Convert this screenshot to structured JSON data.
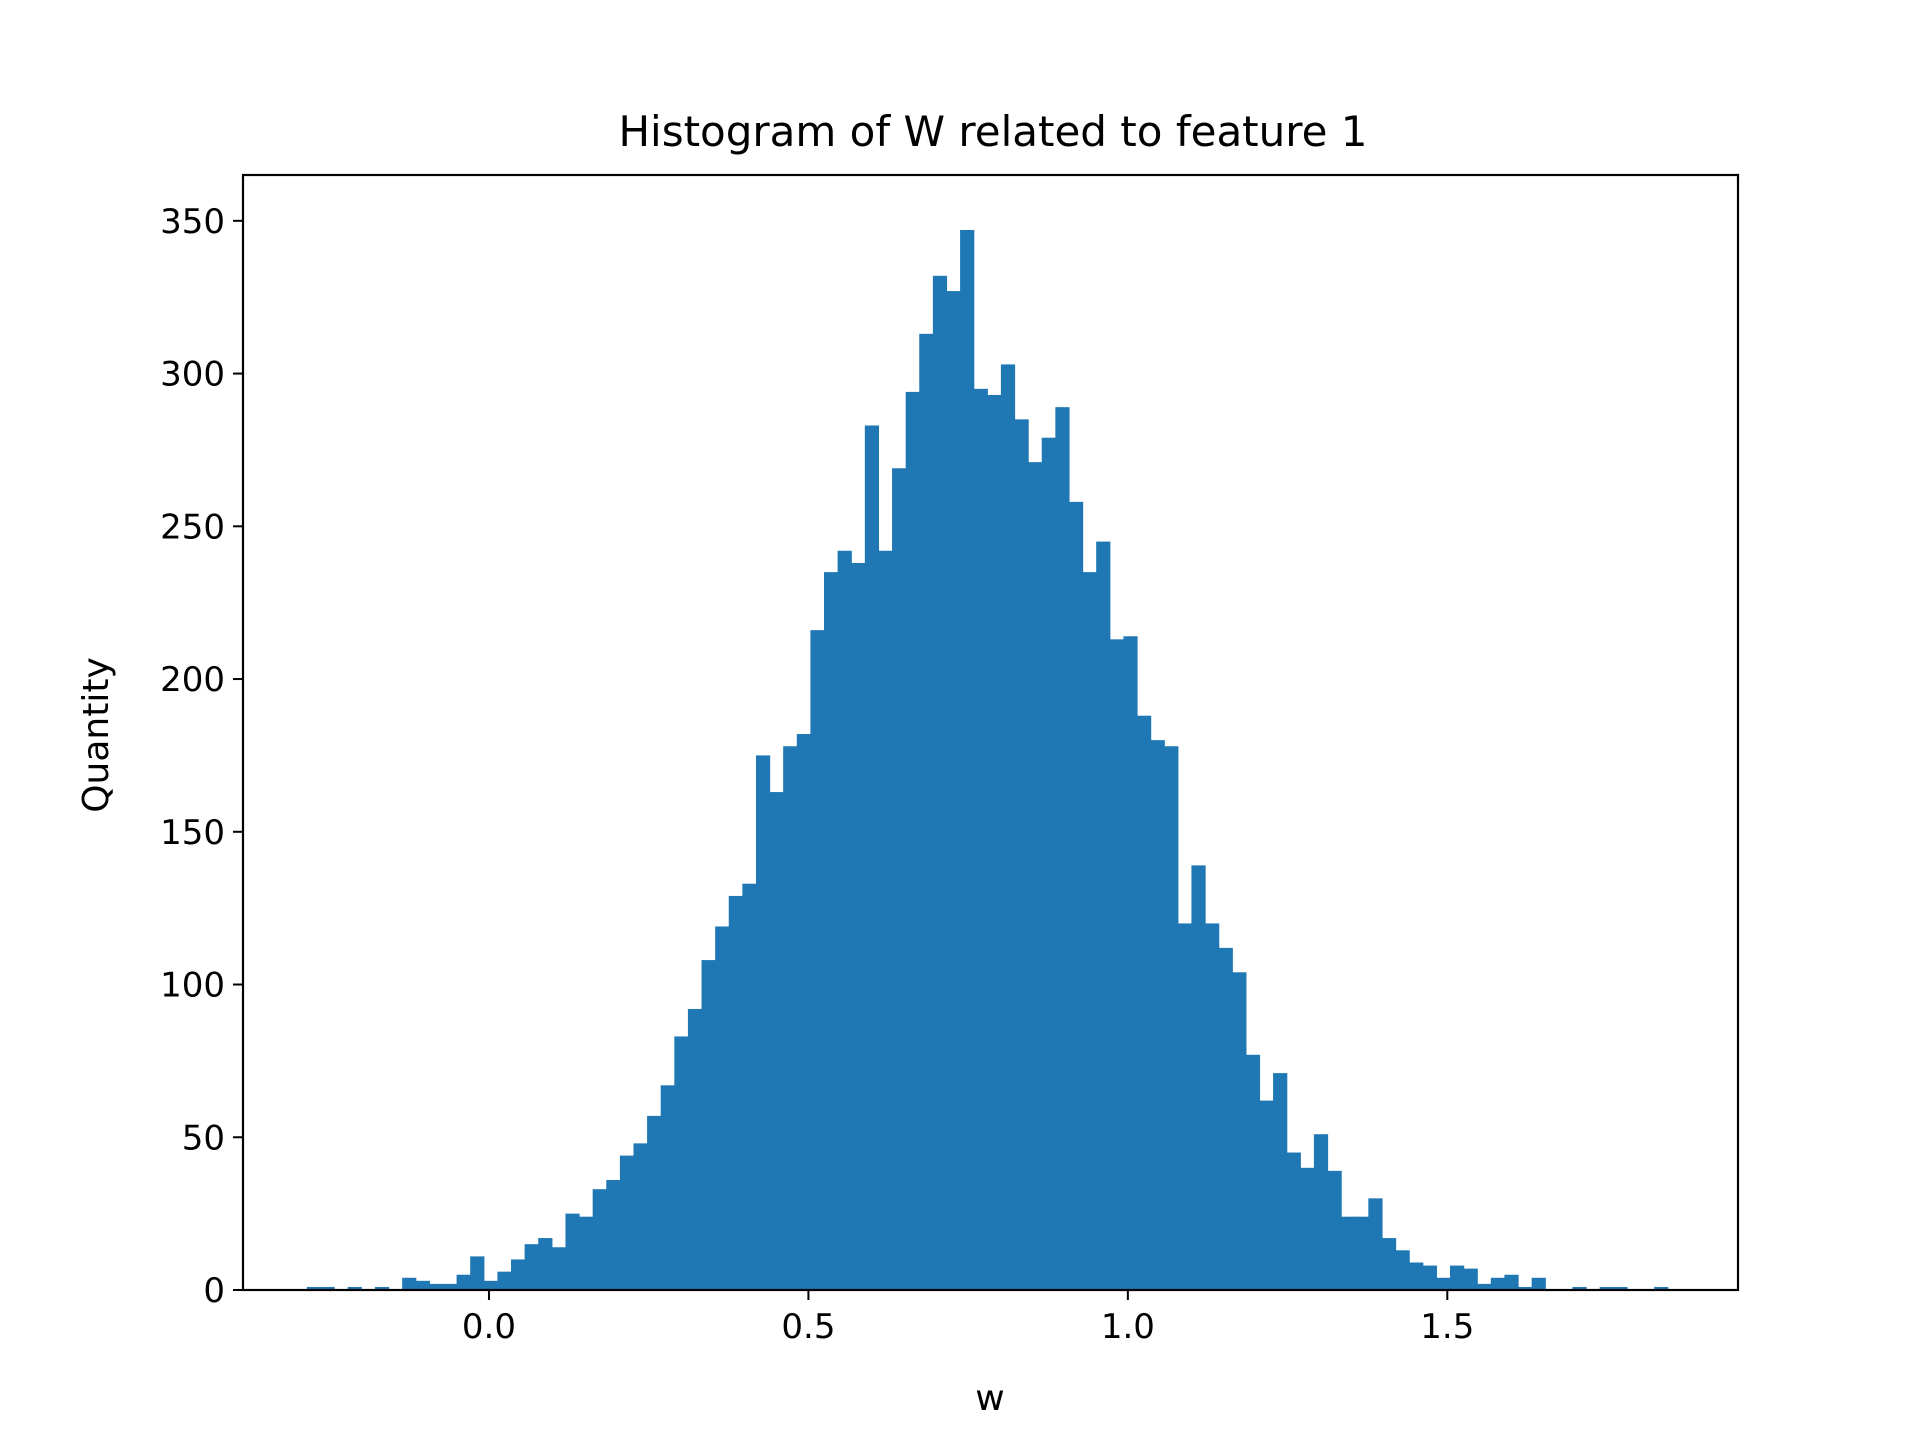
{
  "chart_data": {
    "type": "bar",
    "title": "Histogram of W related to feature 1",
    "xlabel": "w",
    "ylabel": "Quantity",
    "xlim": [
      -0.385,
      1.955
    ],
    "ylim": [
      0,
      365
    ],
    "xticks": [
      {
        "value": 0.0,
        "label": "0.0"
      },
      {
        "value": 0.5,
        "label": "0.5"
      },
      {
        "value": 1.0,
        "label": "1.0"
      },
      {
        "value": 1.5,
        "label": "1.5"
      }
    ],
    "yticks": [
      {
        "value": 0,
        "label": "0"
      },
      {
        "value": 50,
        "label": "50"
      },
      {
        "value": 100,
        "label": "100"
      },
      {
        "value": 150,
        "label": "150"
      },
      {
        "value": 200,
        "label": "200"
      },
      {
        "value": 250,
        "label": "250"
      },
      {
        "value": 300,
        "label": "300"
      },
      {
        "value": 350,
        "label": "350"
      }
    ],
    "bin_start": -0.285,
    "bin_width": 0.0213,
    "values": [
      1,
      1,
      0,
      1,
      0,
      1,
      0,
      4,
      3,
      2,
      2,
      5,
      11,
      3,
      6,
      10,
      15,
      17,
      14,
      25,
      24,
      33,
      36,
      44,
      48,
      57,
      67,
      83,
      92,
      108,
      119,
      129,
      133,
      175,
      163,
      178,
      182,
      216,
      235,
      242,
      238,
      283,
      242,
      269,
      294,
      313,
      332,
      327,
      347,
      295,
      293,
      303,
      285,
      271,
      279,
      289,
      258,
      235,
      245,
      213,
      214,
      188,
      180,
      178,
      120,
      139,
      120,
      112,
      104,
      77,
      62,
      71,
      45,
      40,
      51,
      39,
      24,
      24,
      30,
      17,
      13,
      9,
      8,
      4,
      8,
      7,
      2,
      4,
      5,
      1,
      4,
      0,
      0,
      1,
      0,
      1,
      1,
      0,
      0,
      1
    ],
    "bar_color": "#1f77b4",
    "grid": false
  }
}
